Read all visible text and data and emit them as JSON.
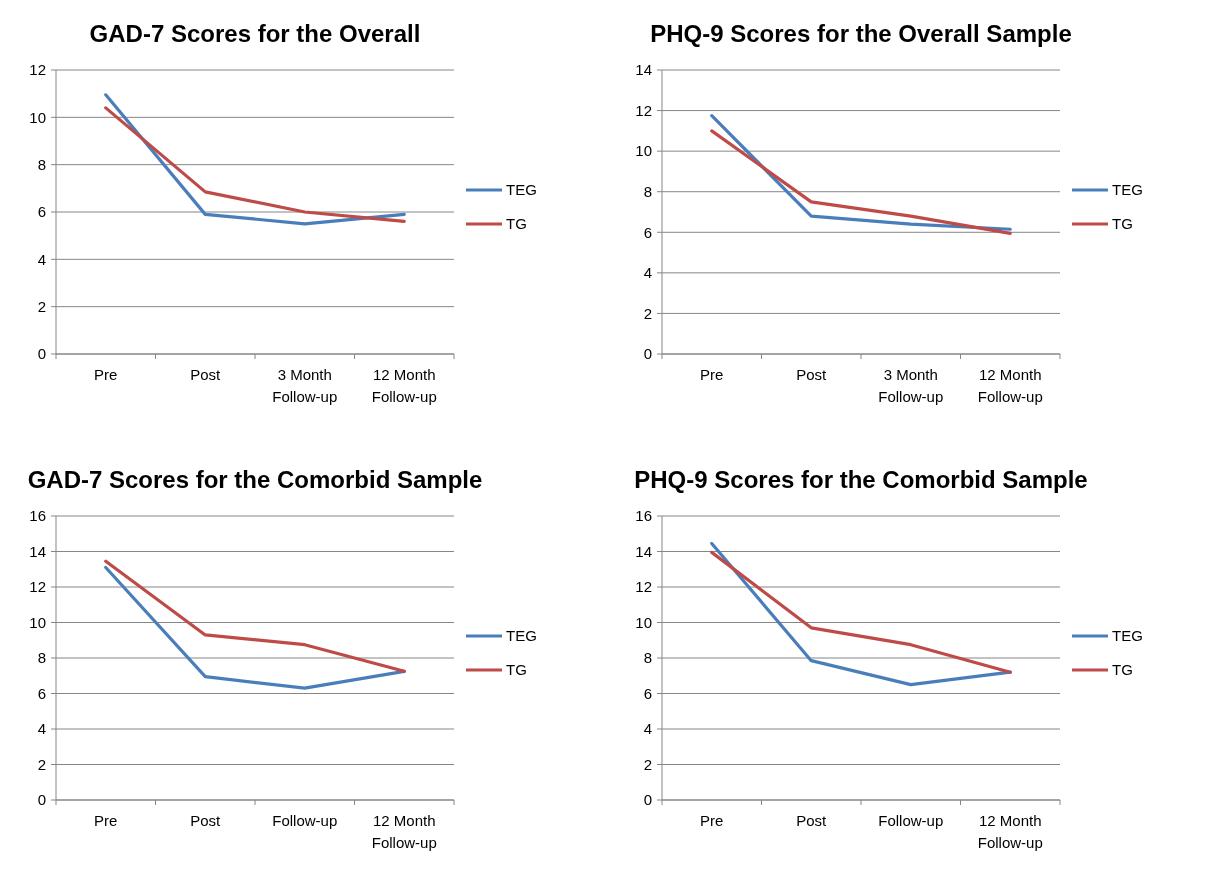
{
  "chart_data": [
    {
      "type": "line",
      "title": "GAD-7 Scores for the Overall",
      "categories": [
        "Pre",
        "Post",
        "3 Month Follow-up",
        "12 Month Follow-up"
      ],
      "ylim": [
        0,
        12
      ],
      "yticks": [
        0,
        2,
        4,
        6,
        8,
        10,
        12
      ],
      "grid": "y",
      "legend": "right",
      "marker": "none",
      "series": [
        {
          "name": "TEG",
          "color": "#4a7ebb",
          "values": [
            10.95,
            5.9,
            5.5,
            5.9
          ]
        },
        {
          "name": "TG",
          "color": "#be4b48",
          "values": [
            10.4,
            6.85,
            6.0,
            5.6
          ]
        }
      ]
    },
    {
      "type": "line",
      "title": "PHQ-9 Scores for the Overall Sample",
      "categories": [
        "Pre",
        "Post",
        "3 Month Follow-up",
        "12 Month Follow-up"
      ],
      "ylim": [
        0,
        14
      ],
      "yticks": [
        0,
        2,
        4,
        6,
        8,
        10,
        12,
        14
      ],
      "grid": "y",
      "legend": "right",
      "marker": "none",
      "series": [
        {
          "name": "TEG",
          "color": "#4a7ebb",
          "values": [
            11.75,
            6.8,
            6.4,
            6.15
          ]
        },
        {
          "name": "TG",
          "color": "#be4b48",
          "values": [
            11.0,
            7.5,
            6.8,
            5.95
          ]
        }
      ]
    },
    {
      "type": "line",
      "title": "GAD-7 Scores for the Comorbid Sample",
      "categories": [
        "Pre",
        "Post",
        "Follow-up",
        "12 Month Follow-up"
      ],
      "ylim": [
        0,
        16
      ],
      "yticks": [
        0,
        2,
        4,
        6,
        8,
        10,
        12,
        14,
        16
      ],
      "grid": "y",
      "legend": "right",
      "marker": "none",
      "series": [
        {
          "name": "TEG",
          "color": "#4a7ebb",
          "values": [
            13.1,
            6.95,
            6.3,
            7.25
          ]
        },
        {
          "name": "TG",
          "color": "#be4b48",
          "values": [
            13.45,
            9.3,
            8.75,
            7.25
          ]
        }
      ]
    },
    {
      "type": "line",
      "title": "PHQ-9 Scores for the Comorbid Sample",
      "categories": [
        "Pre",
        "Post",
        "Follow-up",
        "12 Month Follow-up"
      ],
      "ylim": [
        0,
        16
      ],
      "yticks": [
        0,
        2,
        4,
        6,
        8,
        10,
        12,
        14,
        16
      ],
      "grid": "y",
      "legend": "right",
      "marker": "none",
      "series": [
        {
          "name": "TEG",
          "color": "#4a7ebb",
          "values": [
            14.45,
            7.85,
            6.5,
            7.2
          ]
        },
        {
          "name": "TG",
          "color": "#be4b48",
          "values": [
            13.95,
            9.7,
            8.75,
            7.2
          ]
        }
      ]
    }
  ]
}
